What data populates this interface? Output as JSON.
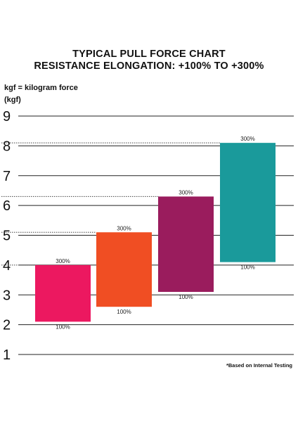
{
  "title_line1": "TYPICAL PULL FORCE CHART",
  "title_line2": "RESISTANCE ELONGATION: +100% TO +300%",
  "unit_note": "kgf = kilogram force",
  "unit_label": "(kgf)",
  "footnote": "*Based on Internal Testing",
  "chart_data": {
    "type": "bar",
    "subtype": "floating-range",
    "yticks": [
      "1",
      "2",
      "3",
      "4",
      "5",
      "6",
      "7",
      "8",
      "9"
    ],
    "ylim": [
      1,
      9
    ],
    "grid": true,
    "bars": [
      {
        "low": 2.1,
        "high": 4.0,
        "low_label": "100%",
        "high_label": "300%",
        "color": "#ec1860"
      },
      {
        "low": 2.6,
        "high": 5.1,
        "low_label": "100%",
        "high_label": "300%",
        "color": "#f04e23"
      },
      {
        "low": 3.1,
        "high": 6.3,
        "low_label": "100%",
        "high_label": "300%",
        "color": "#9a1c5d"
      },
      {
        "low": 4.1,
        "high": 8.1,
        "low_label": "100%",
        "high_label": "300%",
        "color": "#1a9a9b"
      }
    ]
  }
}
